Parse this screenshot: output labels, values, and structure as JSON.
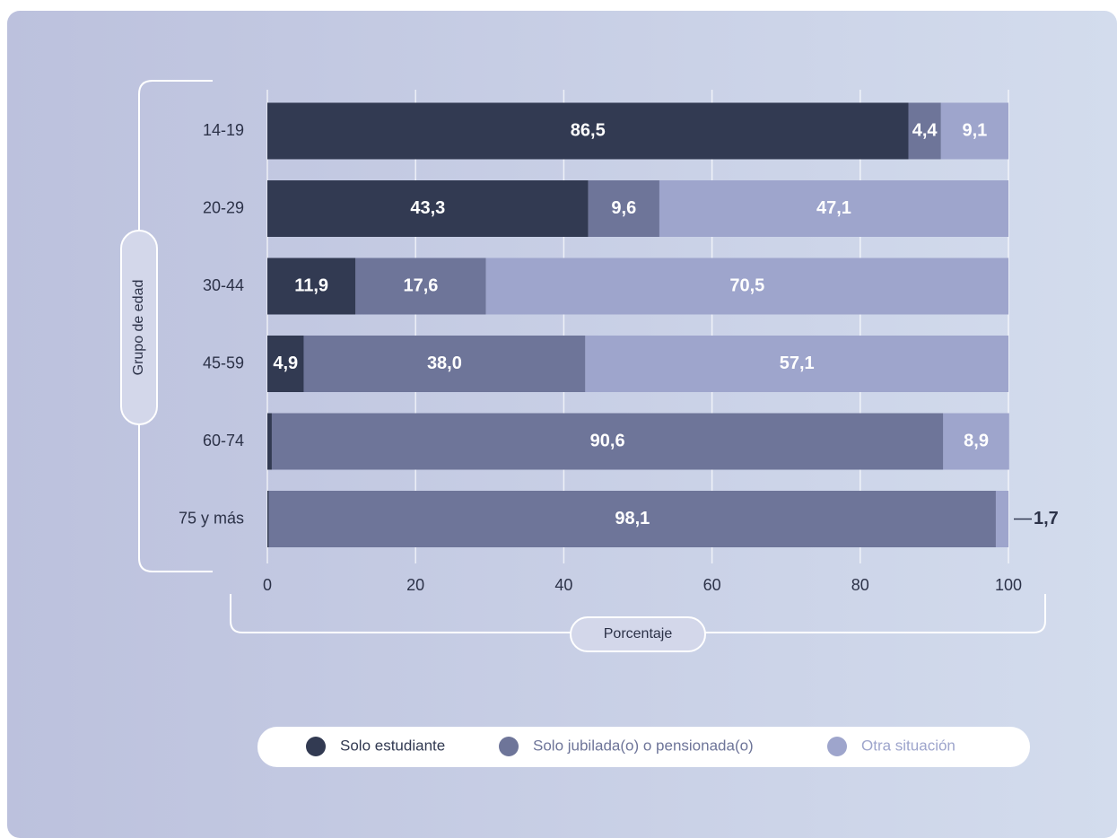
{
  "chart_data": {
    "type": "stacked-bar-horizontal",
    "y_label": "Grupo de edad",
    "x_label": "Porcentaje",
    "categories": [
      "14-19",
      "20-29",
      "30-44",
      "45-59",
      "60-74",
      "75 y más"
    ],
    "series": [
      {
        "name": "Solo estudiante",
        "color": "#323a52",
        "values": [
          86.5,
          43.3,
          11.9,
          4.9,
          0.6,
          0.2
        ],
        "value_labels": [
          "86,5",
          "43,3",
          "11,9",
          "4,9",
          "0,6",
          "0,2"
        ]
      },
      {
        "name": "Solo jubilada(o) o pensionada(o)",
        "color": "#6e7599",
        "values": [
          4.4,
          9.6,
          17.6,
          38.0,
          90.6,
          98.1
        ],
        "value_labels": [
          "4,4",
          "9,6",
          "17,6",
          "38,0",
          "90,6",
          "98,1"
        ]
      },
      {
        "name": "Otra situación",
        "color": "#9ea5cc",
        "values": [
          9.1,
          47.1,
          70.5,
          57.1,
          8.9,
          1.7
        ],
        "value_labels": [
          "9,1",
          "47,1",
          "70,5",
          "57,1",
          "8,9",
          "1,7"
        ]
      }
    ],
    "xlim": [
      0,
      100
    ],
    "xticks": [
      0,
      20,
      40,
      60,
      80,
      100
    ],
    "grid": true
  }
}
